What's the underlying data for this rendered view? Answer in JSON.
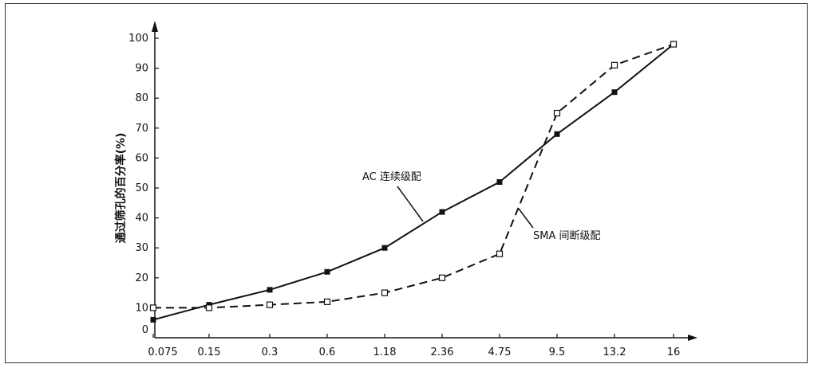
{
  "chart_data": {
    "type": "line",
    "title": "",
    "xlabel": "",
    "ylabel": "通过筛孔的百分率(%)",
    "categories": [
      "0.075",
      "0.15",
      "0.3",
      "0.6",
      "1.18",
      "2.36",
      "4.75",
      "9.5",
      "13.2",
      "16"
    ],
    "y_ticks": [
      "0",
      "10",
      "20",
      "30",
      "40",
      "50",
      "60",
      "70",
      "80",
      "90",
      "100"
    ],
    "ylim": [
      0,
      100
    ],
    "grid": false,
    "series": [
      {
        "name": "AC 连续级配",
        "style": "solid",
        "marker": "filled-square",
        "values": [
          6,
          11,
          16,
          22,
          30,
          42,
          52,
          68,
          82,
          98
        ]
      },
      {
        "name": "SMA 间断级配",
        "style": "dashed",
        "marker": "open-square",
        "values": [
          10,
          10,
          11,
          12,
          15,
          20,
          28,
          75,
          91,
          98
        ]
      }
    ]
  }
}
